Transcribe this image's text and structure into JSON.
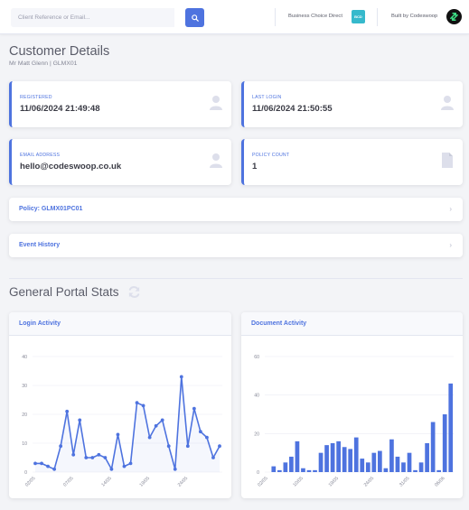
{
  "topbar": {
    "search_placeholder": "Client Reference or Email...",
    "brand_name": "Business Choice Direct",
    "brand_logo_text": "BCD",
    "built_by": "Built by Codeswoop"
  },
  "header": {
    "title": "Customer Details",
    "subtitle": "Mr Matt Glenn | GLMX01"
  },
  "info_cards": [
    {
      "label": "Registered",
      "value": "11/06/2024 21:49:48",
      "icon": "user-icon"
    },
    {
      "label": "Last Login",
      "value": "11/06/2024 21:50:55",
      "icon": "user-icon"
    },
    {
      "label": "Email Address",
      "value": "hello@codeswoop.co.uk",
      "icon": "user-icon"
    },
    {
      "label": "Policy Count",
      "value": "1",
      "icon": "file-icon"
    }
  ],
  "sections": [
    {
      "label": "Policy: GLMX01PC01"
    },
    {
      "label": "Event History"
    }
  ],
  "stats": {
    "title": "General Portal Stats"
  },
  "colors": {
    "primary": "#4e73df",
    "text": "#5a5c69",
    "muted": "#858796",
    "info": "#36b9cc"
  },
  "chart_data": [
    {
      "type": "line",
      "title": "Login Activity",
      "ylim": [
        0,
        40
      ],
      "yticks": [
        0,
        10,
        20,
        30,
        40
      ],
      "xticklabels": [
        "02/05",
        "07/05",
        "14/05",
        "19/05",
        "24/05",
        "30/05"
      ],
      "xtick_index": [
        0,
        6,
        12,
        18,
        24,
        30
      ],
      "values": [
        3,
        3,
        2,
        1,
        9,
        21,
        6,
        18,
        5,
        5,
        6,
        5,
        1,
        13,
        2,
        3,
        24,
        23,
        12,
        16,
        18,
        9,
        1,
        33,
        9,
        22,
        14,
        12,
        5,
        9
      ],
      "grid": true
    },
    {
      "type": "bar",
      "title": "Document Activity",
      "ylim": [
        0,
        60
      ],
      "yticks": [
        0,
        20,
        40,
        60
      ],
      "xticklabels": [
        "02/05",
        "10/05",
        "19/05",
        "24/05",
        "31/05",
        "06/06"
      ],
      "xtick_index": [
        0,
        6,
        12,
        18,
        24,
        30
      ],
      "values": [
        0,
        3,
        1,
        5,
        8,
        16,
        2,
        1,
        1,
        10,
        14,
        15,
        16,
        13,
        12,
        18,
        7,
        5,
        10,
        11,
        2,
        17,
        8,
        5,
        10,
        1,
        5,
        15,
        26,
        1,
        30,
        46
      ],
      "grid": true
    }
  ]
}
